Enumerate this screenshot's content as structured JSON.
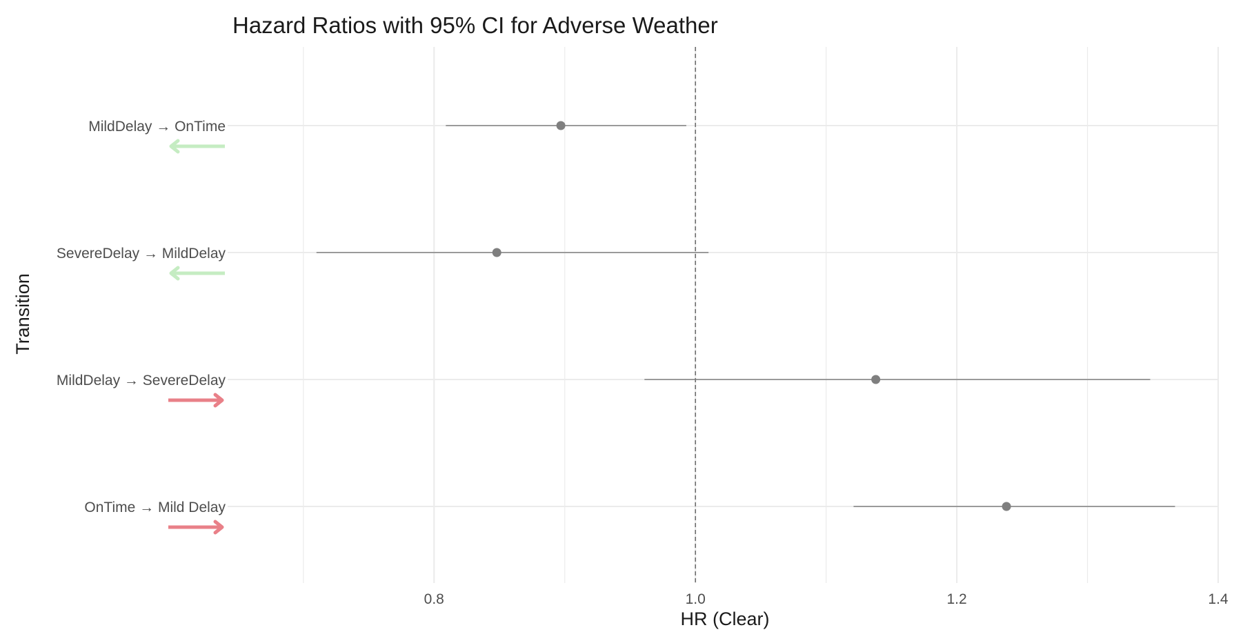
{
  "chart_data": {
    "type": "scatter",
    "title": "Hazard Ratios with 95% CI for Adverse Weather",
    "xlabel": "HR (Clear)",
    "ylabel": "Transition",
    "xlim": [
      0.67,
      1.4
    ],
    "x_ticks": [
      0.8,
      1.0,
      1.2,
      1.4
    ],
    "x_tick_labels": [
      "0.8",
      "1.0",
      "1.2",
      "1.4"
    ],
    "reference_line": 1.0,
    "grid": true,
    "colors": {
      "point_line": "#7f7f7f",
      "grid": "#ebebeb",
      "ref_line": "#666666",
      "arrow_decrease": "#c5ecc2",
      "arrow_increase": "#e98088"
    },
    "categories": [
      "MildDelay → OnTime",
      "SevereDelay → MildDelay",
      "MildDelay → SevereDelay",
      "OnTime → Mild Delay"
    ],
    "points": [
      {
        "label": "MildDelay → OnTime",
        "hr": 0.897,
        "lower": 0.809,
        "upper": 0.993,
        "direction": "left"
      },
      {
        "label": "SevereDelay → MildDelay",
        "hr": 0.848,
        "lower": 0.71,
        "upper": 1.01,
        "direction": "left"
      },
      {
        "label": "MildDelay → SevereDelay",
        "hr": 1.138,
        "lower": 0.961,
        "upper": 1.348,
        "direction": "right"
      },
      {
        "label": "OnTime → Mild Delay",
        "hr": 1.238,
        "lower": 1.121,
        "upper": 1.367,
        "direction": "right"
      }
    ]
  }
}
